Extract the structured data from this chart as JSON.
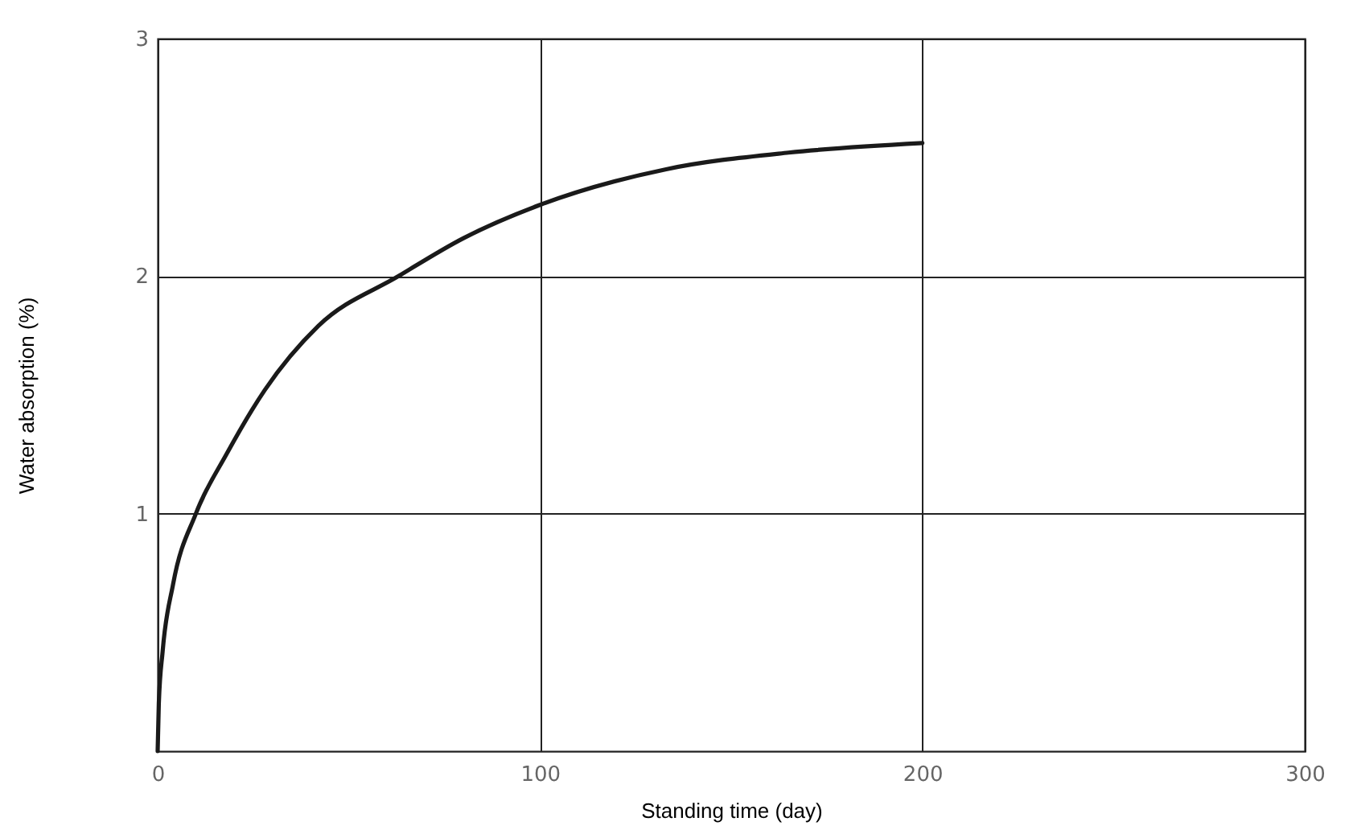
{
  "chart_data": {
    "type": "line",
    "xlabel": "Standing time (day)",
    "ylabel": "Water absorption (%)",
    "x": [
      0,
      0.3,
      1.3,
      4,
      10,
      18,
      28,
      42,
      63,
      80,
      100,
      133,
      165,
      200
    ],
    "series": [
      {
        "color": "#1a1a1a",
        "values": [
          0,
          0.2,
          0.42,
          0.7,
          1.0,
          1.25,
          1.52,
          1.79,
          2.0,
          2.16,
          2.3,
          2.45,
          2.52,
          2.56
        ]
      }
    ],
    "xlim": [
      0,
      300
    ],
    "xticks": [
      0,
      100,
      200,
      300
    ],
    "ylim": [
      0,
      3
    ],
    "yticks": [
      1,
      2,
      3
    ],
    "grid": true,
    "marker": "none",
    "line_style": "solid"
  }
}
